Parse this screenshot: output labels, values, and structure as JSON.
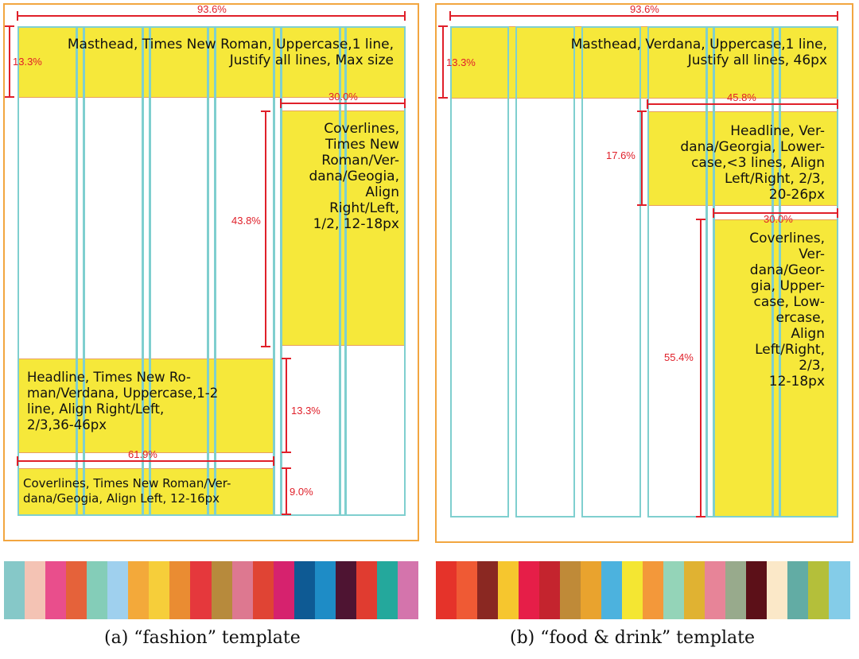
{
  "panel_a": {
    "width_label": "93.6%",
    "masthead_height_label": "13.3%",
    "masthead_text": "Masthead, Times New Roman, Uppercase,1 line,\nJustify all lines, Max size",
    "coverlines_width_label": "30.0%",
    "coverlines_height_label": "43.8%",
    "coverlines_text": "Coverlines,\nTimes New\nRoman/Ver-\ndana/Geogia,\nAlign\nRight/Left,\n1/2, 12-18px",
    "headline_text": "Headline, Times New Ro-\nman/Verdana, Uppercase,1-2\nline, Align Right/Left,\n2/3,36-46px",
    "headline_height_label": "13.3%",
    "bottom_width_label": "61.9%",
    "bottom_coverlines_text": "Coverlines, Times New Roman/Ver-\ndana/Geogia, Align Left, 12-16px",
    "bottom_height_label": "9.0%",
    "caption": "(a) “fashion” template",
    "palette": [
      "#86c8c8",
      "#f4c3b4",
      "#e94e8c",
      "#e5623a",
      "#84cdb8",
      "#9fd0ee",
      "#f3a93a",
      "#f6ce3a",
      "#ea8c32",
      "#e5383c",
      "#b78a3c",
      "#dd7890",
      "#e04434",
      "#d6226e",
      "#0e5a94",
      "#1e8cc6",
      "#4e1432",
      "#e03c30",
      "#24a89c",
      "#d474ac"
    ]
  },
  "panel_b": {
    "width_label": "93.6%",
    "masthead_height_label": "13.3%",
    "masthead_text": "Masthead, Verdana, Uppercase,1 line,\nJustify all lines, 46px",
    "headline_width_label": "45.8%",
    "headline_height_label": "17.6%",
    "headline_text": "Headline, Ver-\ndana/Georgia, Lower-\ncase,<3 lines, Align\nLeft/Right, 2/3,\n20-26px",
    "coverlines_width_label": "30.0%",
    "coverlines_height_label": "55.4%",
    "coverlines_text": "Coverlines,\nVer-\ndana/Geor-\ngia, Upper-\ncase, Low-\nercase,\nAlign\nLeft/Right,\n2/3,\n12-18px",
    "caption": "(b) “food & drink” template",
    "palette": [
      "#e5332a",
      "#ef5a34",
      "#8a2822",
      "#f6c62e",
      "#e61e48",
      "#c4242e",
      "#bf8a38",
      "#e9a32e",
      "#4cb2de",
      "#f4e632",
      "#f3983a",
      "#94d4b8",
      "#e0b232",
      "#e78498",
      "#98aa8c",
      "#5c1018",
      "#fbe8c8",
      "#62aca4",
      "#b4bf3a",
      "#84cce8"
    ]
  }
}
